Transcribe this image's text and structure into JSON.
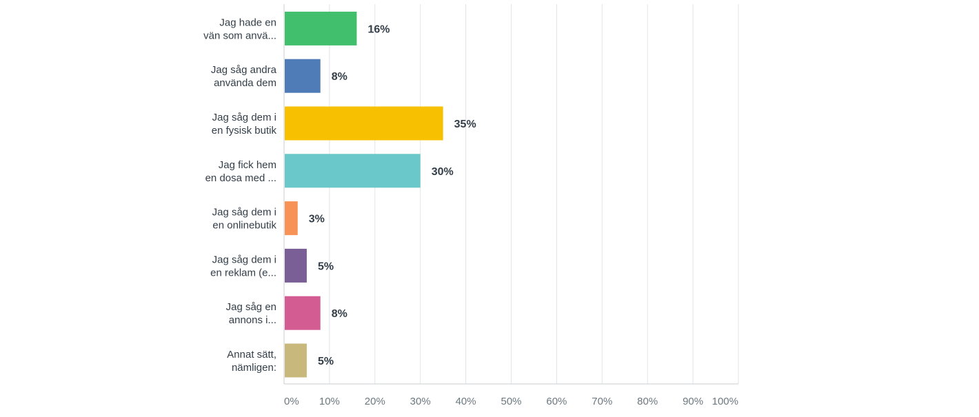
{
  "chart_data": {
    "type": "bar",
    "orientation": "horizontal",
    "categories": [
      [
        "Jag hade en",
        "vän som anvä..."
      ],
      [
        "Jag såg andra",
        "använda dem"
      ],
      [
        "Jag såg dem i",
        "en fysisk butik"
      ],
      [
        "Jag fick hem",
        "en dosa med ..."
      ],
      [
        "Jag såg dem i",
        "en onlinebutik"
      ],
      [
        "Jag såg dem i",
        "en reklam (e..."
      ],
      [
        "Jag såg en",
        "annons i..."
      ],
      [
        "Annat sätt,",
        "nämligen:"
      ]
    ],
    "values": [
      16,
      8,
      35,
      30,
      3,
      5,
      8,
      5
    ],
    "value_labels": [
      "16%",
      "8%",
      "35%",
      "30%",
      "3%",
      "5%",
      "8%",
      "5%"
    ],
    "colors": [
      "#42bf6c",
      "#4f7cb7",
      "#f7c000",
      "#6ac7ca",
      "#f79356",
      "#7a5e96",
      "#d35c93",
      "#c9b87c"
    ],
    "xlim": [
      0,
      100
    ],
    "x_ticks": [
      "0%",
      "10%",
      "20%",
      "30%",
      "40%",
      "50%",
      "60%",
      "70%",
      "80%",
      "90%",
      "100%"
    ],
    "grid": true,
    "gridline_color": "#e0e4e6",
    "axis_color": "#c8ced1",
    "title": "",
    "xlabel": "",
    "ylabel": ""
  }
}
